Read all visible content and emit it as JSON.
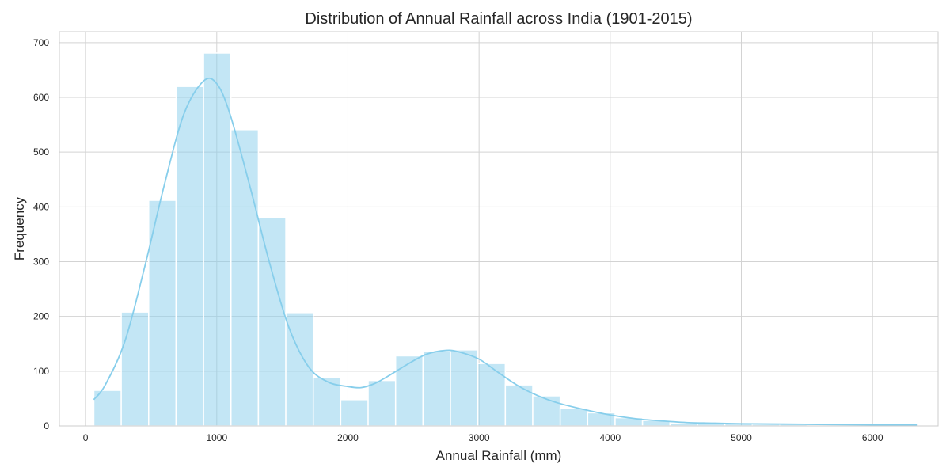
{
  "chart_data": {
    "type": "histogram",
    "title": "Distribution of Annual Rainfall across India (1901-2015)",
    "xlabel": "Annual Rainfall (mm)",
    "ylabel": "Frequency",
    "xlim": [
      -200,
      6500
    ],
    "ylim": [
      0,
      720
    ],
    "xticks": [
      0,
      1000,
      2000,
      3000,
      4000,
      5000,
      6000
    ],
    "yticks": [
      0,
      100,
      200,
      300,
      400,
      500,
      600,
      700
    ],
    "grid": true,
    "bin_edges": [
      62.3,
      271.5,
      480.7,
      689.9,
      899.1,
      1108.3,
      1317.5,
      1526.7,
      1735.9,
      1945.1,
      2154.3,
      2363.5,
      2572.7,
      2781.9,
      2991.1,
      3200.3,
      3409.5,
      3618.7,
      3827.9,
      4037.1,
      4246.3,
      4455.5,
      4664.7,
      4873.9,
      5083.1,
      5292.3,
      5501.5,
      5710.7,
      5919.9,
      6129.1,
      6338.3
    ],
    "counts": [
      65,
      208,
      412,
      620,
      681,
      541,
      380,
      207,
      88,
      48,
      83,
      128,
      137,
      139,
      114,
      75,
      55,
      32,
      24,
      15,
      10,
      5,
      5,
      4,
      3,
      3,
      2,
      2,
      2,
      2
    ],
    "kde": {
      "x": [
        62,
        150,
        300,
        450,
        600,
        750,
        900,
        1000,
        1100,
        1250,
        1400,
        1550,
        1700,
        1850,
        2000,
        2100,
        2200,
        2300,
        2450,
        2600,
        2750,
        2850,
        3000,
        3150,
        3300,
        3450,
        3600,
        3800,
        4000,
        4200,
        4400,
        4600,
        4800,
        5000,
        5500,
        6000,
        6338
      ],
      "y": [
        48,
        75,
        155,
        290,
        440,
        570,
        630,
        625,
        570,
        440,
        300,
        180,
        108,
        80,
        72,
        70,
        77,
        90,
        112,
        131,
        138,
        135,
        122,
        97,
        73,
        55,
        42,
        30,
        20,
        13,
        9,
        6,
        5,
        4,
        3,
        2,
        2
      ]
    },
    "colors": {
      "bar_fill": "#87ceeb",
      "bar_opacity": 0.5,
      "kde_line": "#87ceeb"
    }
  }
}
